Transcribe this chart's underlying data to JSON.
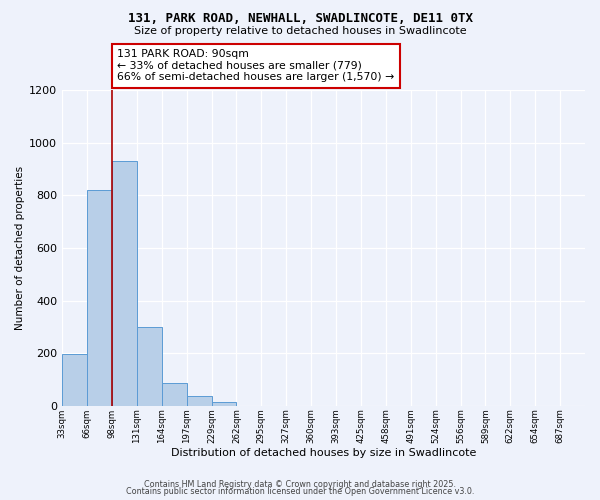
{
  "title1": "131, PARK ROAD, NEWHALL, SWADLINCOTE, DE11 0TX",
  "title2": "Size of property relative to detached houses in Swadlincote",
  "xlabel": "Distribution of detached houses by size in Swadlincote",
  "ylabel": "Number of detached properties",
  "bin_labels": [
    "33sqm",
    "66sqm",
    "98sqm",
    "131sqm",
    "164sqm",
    "197sqm",
    "229sqm",
    "262sqm",
    "295sqm",
    "327sqm",
    "360sqm",
    "393sqm",
    "425sqm",
    "458sqm",
    "491sqm",
    "524sqm",
    "556sqm",
    "589sqm",
    "622sqm",
    "654sqm",
    "687sqm"
  ],
  "bar_values": [
    197,
    820,
    930,
    298,
    85,
    35,
    13,
    0,
    0,
    0,
    0,
    0,
    0,
    0,
    0,
    0,
    0,
    0,
    0,
    0
  ],
  "bar_color": "#b8cfe8",
  "bar_edge_color": "#5b9bd5",
  "vline_x": 2,
  "vline_color": "#aa0000",
  "annotation_title": "131 PARK ROAD: 90sqm",
  "annotation_line1": "← 33% of detached houses are smaller (779)",
  "annotation_line2": "66% of semi-detached houses are larger (1,570) →",
  "annotation_box_color": "#ffffff",
  "annotation_box_edge": "#cc0000",
  "ylim": [
    0,
    1200
  ],
  "yticks": [
    0,
    200,
    400,
    600,
    800,
    1000,
    1200
  ],
  "footer1": "Contains HM Land Registry data © Crown copyright and database right 2025.",
  "footer2": "Contains public sector information licensed under the Open Government Licence v3.0.",
  "bg_color": "#eef2fb"
}
